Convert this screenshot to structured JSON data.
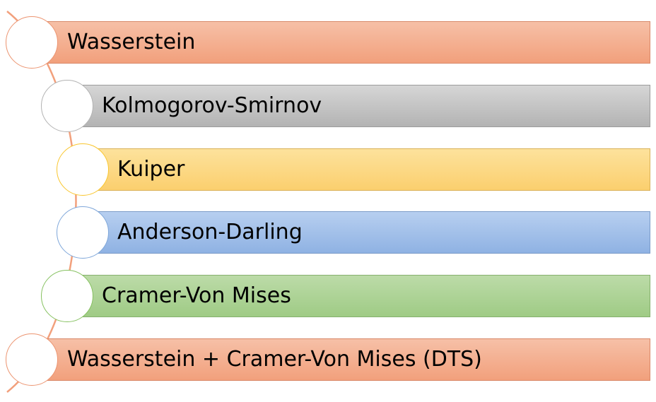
{
  "diagram": {
    "items": [
      {
        "label": "Wasserstein",
        "fill_top": "#f6c0a7",
        "fill_bottom": "#f2a07c",
        "border": "#d9896a",
        "circle_border": "#ec9470"
      },
      {
        "label": "Kolmogorov-Smirnov",
        "fill_top": "#d6d6d6",
        "fill_bottom": "#b3b3b3",
        "border": "#9c9c9c",
        "circle_border": "#b3b3b3"
      },
      {
        "label": "Kuiper",
        "fill_top": "#fde29c",
        "fill_bottom": "#fbcf6e",
        "border": "#d9b25a",
        "circle_border": "#f9c62e"
      },
      {
        "label": "Anderson-Darling",
        "fill_top": "#b7cff0",
        "fill_bottom": "#8fb2e3",
        "border": "#7b9bc8",
        "circle_border": "#7fa7da"
      },
      {
        "label": "Cramer-Von Mises",
        "fill_top": "#bcdba8",
        "fill_bottom": "#9fcb85",
        "border": "#86b06e",
        "circle_border": "#86c160"
      },
      {
        "label": "Wasserstein + Cramer-Von Mises (DTS)",
        "fill_top": "#f6c0a7",
        "fill_bottom": "#f2a07c",
        "border": "#d9896a",
        "circle_border": "#ec9470"
      }
    ],
    "connector_color": "#f2a07c"
  }
}
